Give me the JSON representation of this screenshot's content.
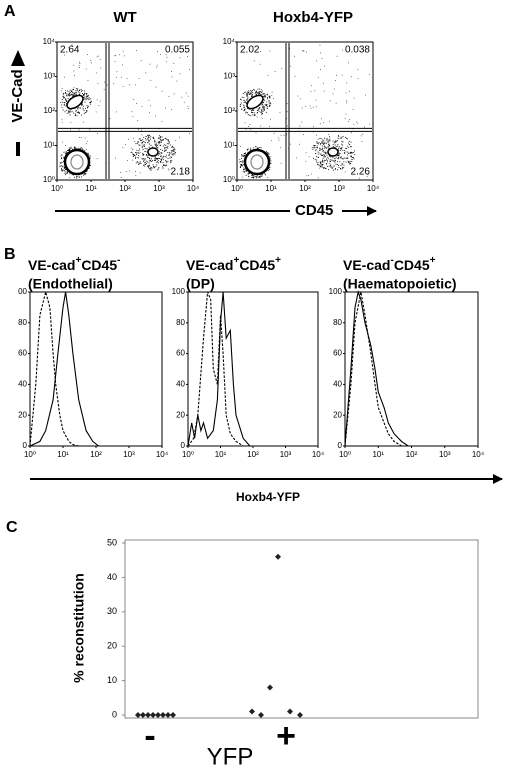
{
  "panel_a": {
    "label": "A",
    "xlabel": "CD45",
    "ylabel": "VE-Cad",
    "lim": [
      1,
      10000
    ],
    "ticks": [
      {
        "value": 1,
        "label": "10⁰"
      },
      {
        "value": 10,
        "label": "10¹"
      },
      {
        "value": 100,
        "label": "10²"
      },
      {
        "value": 1000,
        "label": "10³"
      },
      {
        "value": 10000,
        "label": "10⁴"
      }
    ],
    "plots": [
      {
        "title": "WT",
        "upper_left": 2.64,
        "upper_right": 0.055,
        "lower_right": 2.18
      },
      {
        "title": "Hoxb4-YFP",
        "upper_left": 2.02,
        "upper_right": 0.038,
        "lower_right": 2.26
      }
    ]
  },
  "panel_b": {
    "label": "B",
    "xlabel": "Hoxb4-YFP",
    "xlim": [
      1,
      10000
    ],
    "ylim": [
      0,
      100
    ],
    "xticks": [
      {
        "value": 1,
        "label": "10⁰"
      },
      {
        "value": 10,
        "label": "10¹"
      },
      {
        "value": 100,
        "label": "10²"
      },
      {
        "value": 1000,
        "label": "10³"
      },
      {
        "value": 10000,
        "label": "10⁴"
      }
    ],
    "plots": [
      {
        "title": [
          "VE-cad",
          "+",
          "CD45",
          "-"
        ],
        "subtitle": "(Endothelial)",
        "yticks": [
          0,
          20,
          40,
          60,
          80,
          {
            "value": 100,
            "label": "00"
          }
        ],
        "series": [
          {
            "style": "dashed",
            "x": [
              1,
              1.5,
              2,
              3,
              4,
              5,
              6,
              8,
              10,
              15,
              20,
              30
            ],
            "values": [
              0,
              40,
              85,
              100,
              90,
              60,
              40,
              20,
              10,
              3,
              1,
              0
            ]
          },
          {
            "style": "solid",
            "x": [
              1,
              2,
              3,
              5,
              7,
              10,
              12,
              15,
              20,
              30,
              50,
              80,
              120
            ],
            "values": [
              0,
              3,
              10,
              30,
              60,
              90,
              100,
              85,
              60,
              30,
              10,
              3,
              0
            ]
          }
        ]
      },
      {
        "title": [
          "VE-cad",
          "+",
          "CD45",
          "+"
        ],
        "subtitle": "(DP)",
        "yticks": [
          0,
          20,
          40,
          60,
          80,
          100
        ],
        "series": [
          {
            "style": "dashed",
            "x": [
              1,
              1.5,
              2,
              3,
              4,
              5,
              6,
              8,
              10,
              12,
              15,
              20,
              30,
              50
            ],
            "values": [
              0,
              5,
              20,
              70,
              100,
              95,
              50,
              40,
              85,
              60,
              20,
              8,
              3,
              0
            ]
          },
          {
            "style": "solid",
            "x": [
              1,
              1.3,
              1.6,
              2,
              2.5,
              3,
              4,
              6,
              8,
              10,
              12,
              15,
              20,
              25,
              30,
              50,
              80
            ],
            "values": [
              0,
              15,
              5,
              20,
              10,
              15,
              5,
              10,
              30,
              80,
              100,
              70,
              75,
              40,
              20,
              5,
              0
            ]
          }
        ]
      },
      {
        "title": [
          "VE-cad",
          "-",
          "CD45",
          "+"
        ],
        "subtitle": "(Haematopoietic)",
        "yticks": [
          0,
          20,
          40,
          60,
          80,
          100
        ],
        "series": [
          {
            "style": "dashed",
            "x": [
              1,
              1.5,
              2,
              3,
              4,
              6,
              8,
              10,
              15,
              20,
              30,
              50
            ],
            "values": [
              0,
              40,
              80,
              100,
              85,
              60,
              40,
              25,
              15,
              8,
              3,
              0
            ]
          },
          {
            "style": "solid",
            "x": [
              1,
              1.5,
              2,
              2.5,
              3,
              4,
              6,
              8,
              10,
              15,
              20,
              30,
              50,
              80
            ],
            "values": [
              0,
              50,
              90,
              100,
              95,
              80,
              65,
              50,
              35,
              25,
              15,
              8,
              3,
              0
            ]
          }
        ]
      }
    ]
  },
  "panel_c": {
    "label": "C",
    "type": "scatter",
    "ylabel": "% reconstitution",
    "xlabel": "YFP",
    "categories": [
      "-",
      "+"
    ],
    "values": [
      [
        0,
        0,
        0,
        0,
        0,
        0,
        0,
        0
      ],
      [
        1,
        0,
        8,
        46,
        1,
        0
      ]
    ],
    "ylim": [
      0,
      50
    ],
    "yticks": [
      0,
      10,
      20,
      30,
      40,
      50
    ],
    "color": "#222222"
  }
}
